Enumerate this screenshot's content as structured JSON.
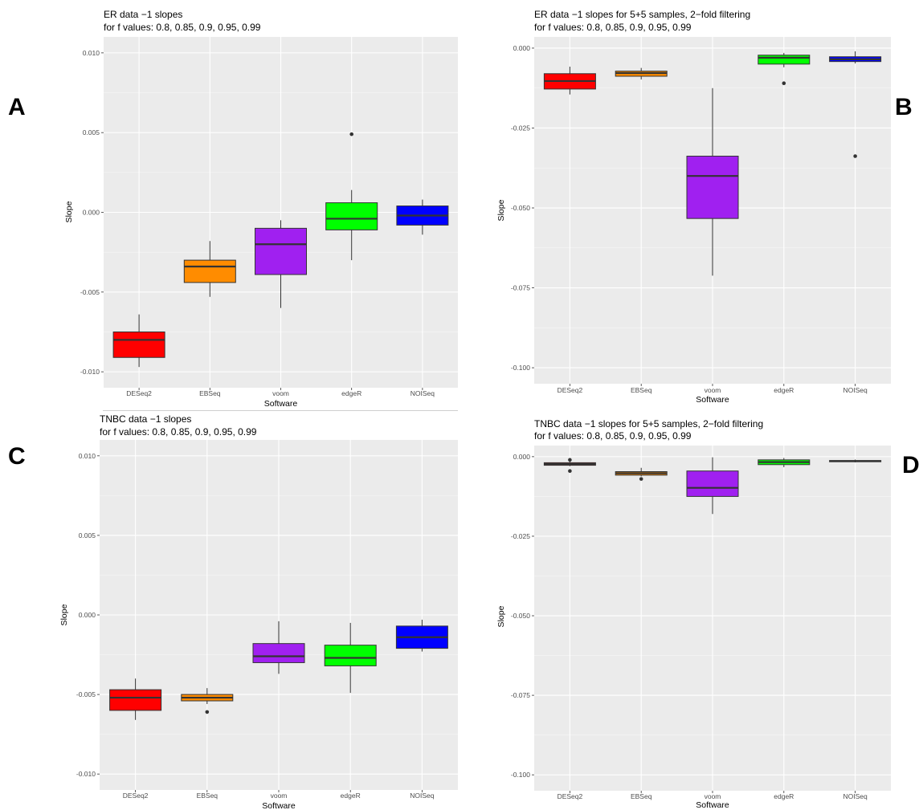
{
  "panels": [
    {
      "letter": "A",
      "title": [
        "ER data −1 slopes",
        "for f values: 0.8, 0.85, 0.9, 0.95, 0.99"
      ]
    },
    {
      "letter": "B",
      "title": [
        "ER data −1 slopes for 5+5 samples, 2−fold filtering",
        "for f values: 0.8, 0.85, 0.9, 0.95, 0.99"
      ]
    },
    {
      "letter": "C",
      "title": [
        "TNBC data −1 slopes",
        "for f values: 0.8, 0.85, 0.9, 0.95, 0.99"
      ]
    },
    {
      "letter": "D",
      "title": [
        "TNBC data −1 slopes for 5+5 samples, 2−fold filtering",
        "for f values: 0.8, 0.85, 0.9, 0.95, 0.99"
      ]
    }
  ],
  "chart_data": [
    {
      "type": "box",
      "title": "ER data −1 slopes\nfor f values: 0.8, 0.85, 0.9, 0.95, 0.99",
      "xlabel": "Software",
      "ylabel": "Slope",
      "categories": [
        "DESeq2",
        "EBSeq",
        "voom",
        "edgeR",
        "NOISeq"
      ],
      "colors": [
        "#ff0000",
        "#ff8c00",
        "#a020f0",
        "#00ff00",
        "#0000ff"
      ],
      "ylim": [
        -0.011,
        0.011
      ],
      "yticks": [
        -0.01,
        -0.005,
        0.0,
        0.005,
        0.01
      ],
      "ytick_labels": [
        "-0.010",
        "-0.005",
        "0.000",
        "0.005",
        "0.010"
      ],
      "grid": true,
      "boxes": [
        {
          "whisker_low": -0.0097,
          "q1": -0.0091,
          "median": -0.008,
          "q3": -0.0075,
          "whisker_high": -0.0064,
          "outliers": []
        },
        {
          "whisker_low": -0.0053,
          "q1": -0.0044,
          "median": -0.0034,
          "q3": -0.003,
          "whisker_high": -0.0018,
          "outliers": []
        },
        {
          "whisker_low": -0.006,
          "q1": -0.0039,
          "median": -0.002,
          "q3": -0.001,
          "whisker_high": -0.0005,
          "outliers": []
        },
        {
          "whisker_low": -0.003,
          "q1": -0.0011,
          "median": -0.0004,
          "q3": 0.0006,
          "whisker_high": 0.0014,
          "outliers": [
            0.0049
          ]
        },
        {
          "whisker_low": -0.0014,
          "q1": -0.0008,
          "median": -0.0002,
          "q3": 0.0004,
          "whisker_high": 0.0008,
          "outliers": []
        }
      ]
    },
    {
      "type": "box",
      "title": "ER data −1 slopes for 5+5 samples, 2−fold filtering\nfor f values: 0.8, 0.85, 0.9, 0.95, 0.99",
      "xlabel": "Software",
      "ylabel": "Slope",
      "categories": [
        "DESeq2",
        "EBSeq",
        "voom",
        "edgeR",
        "NOISeq"
      ],
      "colors": [
        "#ff0000",
        "#ff8c00",
        "#a020f0",
        "#00ff00",
        "#0000ff"
      ],
      "ylim": [
        -0.105,
        0.0035
      ],
      "yticks": [
        -0.1,
        -0.075,
        -0.05,
        -0.025,
        0.0
      ],
      "ytick_labels": [
        "-0.100",
        "-0.075",
        "-0.050",
        "-0.025",
        "0.000"
      ],
      "grid": true,
      "boxes": [
        {
          "whisker_low": -0.0145,
          "q1": -0.0128,
          "median": -0.0103,
          "q3": -0.008,
          "whisker_high": -0.0058,
          "outliers": []
        },
        {
          "whisker_low": -0.0098,
          "q1": -0.0088,
          "median": -0.0078,
          "q3": -0.0072,
          "whisker_high": -0.0062,
          "outliers": []
        },
        {
          "whisker_low": -0.0712,
          "q1": -0.0533,
          "median": -0.04,
          "q3": -0.0338,
          "whisker_high": -0.0125,
          "outliers": []
        },
        {
          "whisker_low": -0.006,
          "q1": -0.005,
          "median": -0.003,
          "q3": -0.0022,
          "whisker_high": -0.0015,
          "outliers": [
            -0.011
          ]
        },
        {
          "whisker_low": -0.0048,
          "q1": -0.0042,
          "median": -0.0035,
          "q3": -0.0027,
          "whisker_high": -0.001,
          "outliers": [
            -0.0338
          ]
        }
      ]
    },
    {
      "type": "box",
      "title": "TNBC data −1 slopes\nfor f values: 0.8, 0.85, 0.9, 0.95, 0.99",
      "xlabel": "Software",
      "ylabel": "Slope",
      "categories": [
        "DESeq2",
        "EBSeq",
        "voom",
        "edgeR",
        "NOISeq"
      ],
      "colors": [
        "#ff0000",
        "#ff8c00",
        "#a020f0",
        "#00ff00",
        "#0000ff"
      ],
      "ylim": [
        -0.011,
        0.011
      ],
      "yticks": [
        -0.01,
        -0.005,
        0.0,
        0.005,
        0.01
      ],
      "ytick_labels": [
        "-0.010",
        "-0.005",
        "0.000",
        "0.005",
        "0.010"
      ],
      "grid": true,
      "boxes": [
        {
          "whisker_low": -0.0066,
          "q1": -0.006,
          "median": -0.0052,
          "q3": -0.0047,
          "whisker_high": -0.004,
          "outliers": []
        },
        {
          "whisker_low": -0.0056,
          "q1": -0.0054,
          "median": -0.0052,
          "q3": -0.005,
          "whisker_high": -0.0046,
          "outliers": [
            -0.0061
          ]
        },
        {
          "whisker_low": -0.0037,
          "q1": -0.003,
          "median": -0.0026,
          "q3": -0.0018,
          "whisker_high": -0.0004,
          "outliers": []
        },
        {
          "whisker_low": -0.0049,
          "q1": -0.0032,
          "median": -0.0027,
          "q3": -0.0019,
          "whisker_high": -0.0005,
          "outliers": []
        },
        {
          "whisker_low": -0.0023,
          "q1": -0.0021,
          "median": -0.0014,
          "q3": -0.0007,
          "whisker_high": -0.0003,
          "outliers": []
        }
      ]
    },
    {
      "type": "box",
      "title": "TNBC data −1 slopes for 5+5 samples, 2−fold filtering\nfor f values: 0.8, 0.85, 0.9, 0.95, 0.99",
      "xlabel": "Software",
      "ylabel": "Slope",
      "categories": [
        "DESeq2",
        "EBSeq",
        "voom",
        "edgeR",
        "NOISeq"
      ],
      "colors": [
        "#ff0000",
        "#ff8c00",
        "#a020f0",
        "#00ff00",
        "#0000ff"
      ],
      "ylim": [
        -0.105,
        0.0035
      ],
      "yticks": [
        -0.1,
        -0.075,
        -0.05,
        -0.025,
        0.0
      ],
      "ytick_labels": [
        "-0.100",
        "-0.075",
        "-0.050",
        "-0.025",
        "0.000"
      ],
      "grid": true,
      "boxes": [
        {
          "whisker_low": -0.003,
          "q1": -0.0027,
          "median": -0.0023,
          "q3": -0.0019,
          "whisker_high": -0.0015,
          "outliers": [
            -0.001,
            -0.0045
          ]
        },
        {
          "whisker_low": -0.0062,
          "q1": -0.0058,
          "median": -0.0052,
          "q3": -0.0047,
          "whisker_high": -0.0035,
          "outliers": [
            -0.007
          ]
        },
        {
          "whisker_low": -0.018,
          "q1": -0.0125,
          "median": -0.0098,
          "q3": -0.0045,
          "whisker_high": -0.0002,
          "outliers": []
        },
        {
          "whisker_low": -0.0033,
          "q1": -0.0025,
          "median": -0.0017,
          "q3": -0.001,
          "whisker_high": -0.0004,
          "outliers": []
        },
        {
          "whisker_low": -0.0018,
          "q1": -0.0016,
          "median": -0.0014,
          "q3": -0.0012,
          "whisker_high": -0.0009,
          "outliers": []
        }
      ]
    }
  ]
}
